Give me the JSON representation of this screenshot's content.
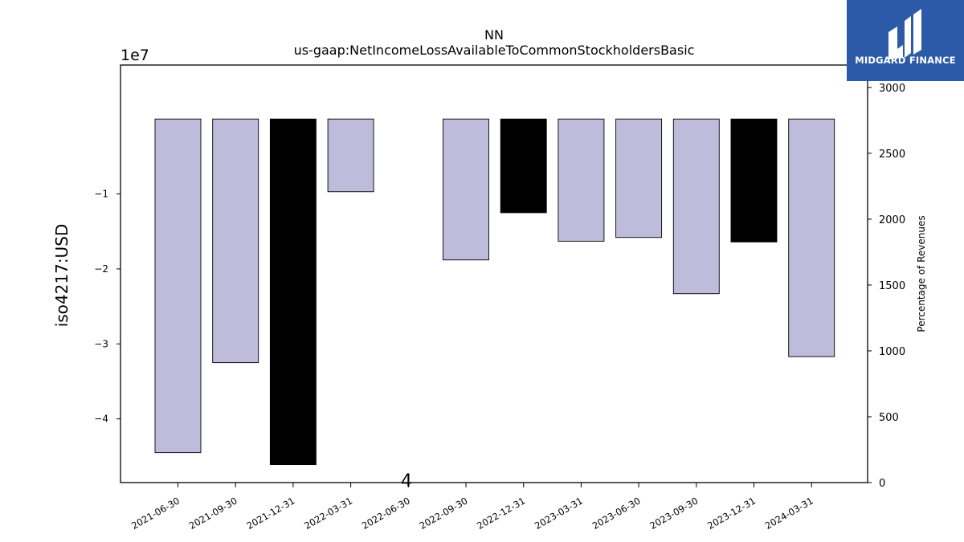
{
  "chart_data": {
    "type": "bar",
    "title": "NN",
    "subtitle": "us-gaap:NetIncomeLossAvailableToCommonStockholdersBasic",
    "ylabel": "iso4217:USD",
    "y2label": "Percentage of Revenues",
    "offset_label": "1e7",
    "ylim": [
      -4.85,
      0.72
    ],
    "yticks": [
      -4,
      -3,
      -2,
      -1
    ],
    "ytick_labels": [
      "−4",
      "−3",
      "−2",
      "−1"
    ],
    "y2lim": [
      0,
      3170
    ],
    "y2ticks": [
      0,
      500,
      1000,
      1500,
      2000,
      2500,
      3000
    ],
    "categories": [
      "2021-06-30",
      "2021-09-30",
      "2021-12-31",
      "2022-03-31",
      "2022-06-30",
      "2022-09-30",
      "2022-12-31",
      "2023-03-31",
      "2023-06-30",
      "2023-09-30",
      "2023-12-31",
      "2024-03-31"
    ],
    "values": [
      -4.45,
      -3.25,
      -4.61,
      -0.97,
      null,
      -1.88,
      -1.25,
      -1.63,
      -1.58,
      -2.33,
      -1.64,
      -3.17
    ],
    "highlight": [
      false,
      false,
      true,
      false,
      false,
      false,
      true,
      false,
      false,
      false,
      true,
      false
    ],
    "bar_color": "#bebbdb",
    "highlight_color": "#000000",
    "annotation": "4"
  },
  "logo": {
    "text": "MIDGARD FINANCE",
    "bg": "#2c5aa8"
  }
}
